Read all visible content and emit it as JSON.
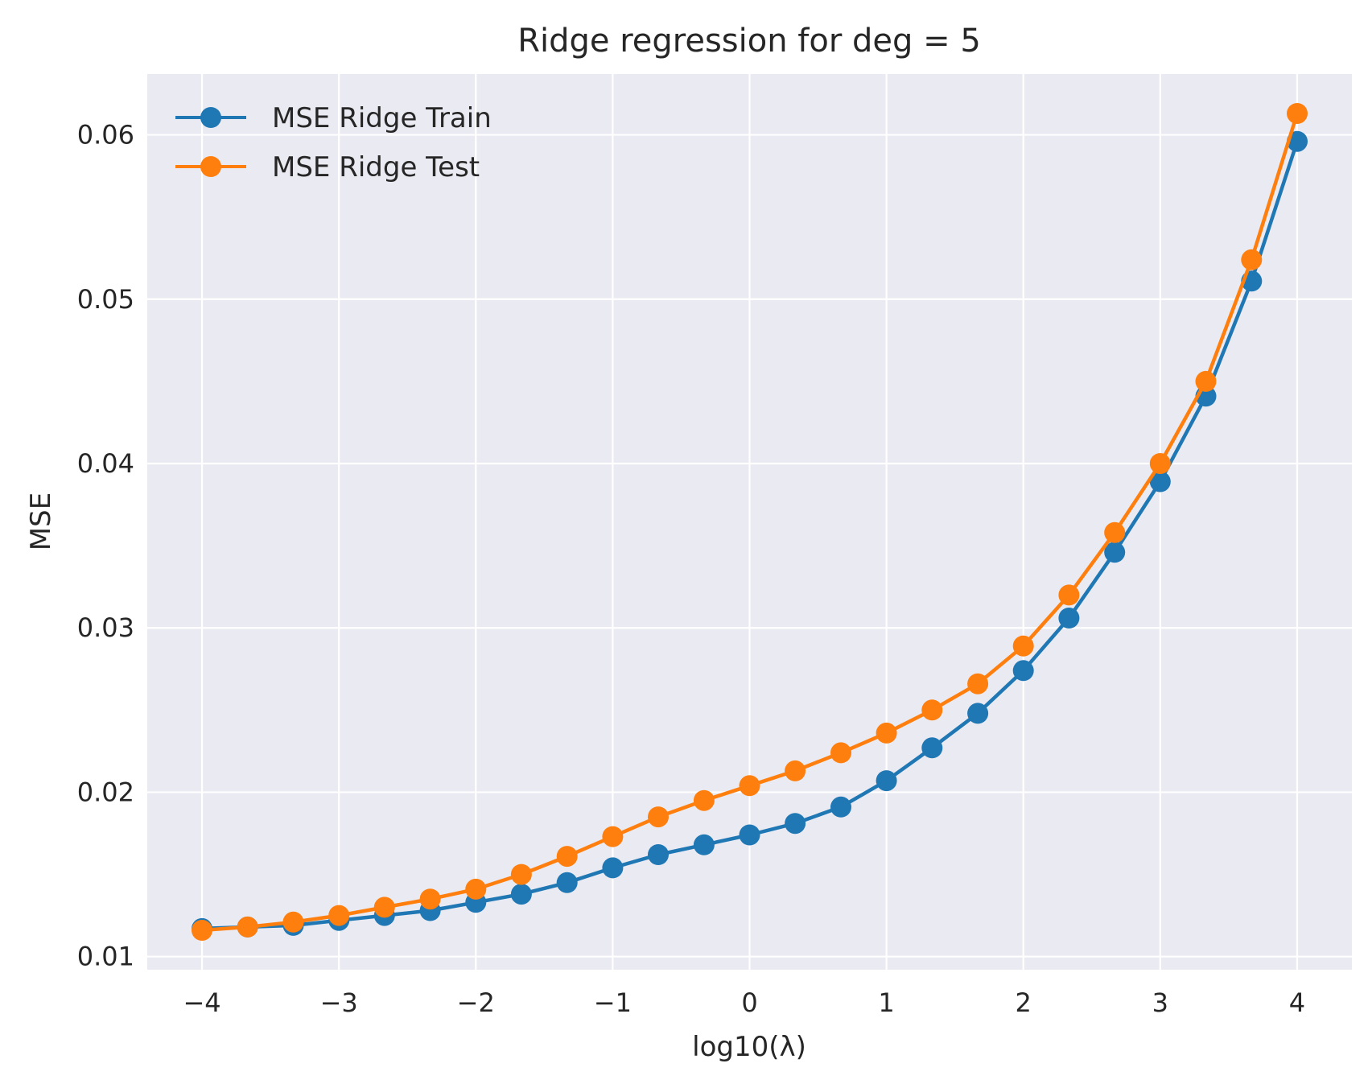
{
  "chart_data": {
    "type": "line",
    "title": "Ridge regression for deg = 5",
    "xlabel": "log10(λ)",
    "ylabel": "MSE",
    "xlim": [
      -4.4,
      4.4
    ],
    "ylim": [
      0.0092,
      0.0637
    ],
    "xticks": [
      -4,
      -3,
      -2,
      -1,
      0,
      1,
      2,
      3,
      4
    ],
    "xtick_labels": [
      "−4",
      "−3",
      "−2",
      "−1",
      "0",
      "1",
      "2",
      "3",
      "4"
    ],
    "yticks": [
      0.01,
      0.02,
      0.03,
      0.04,
      0.05,
      0.06
    ],
    "ytick_labels": [
      "0.01",
      "0.02",
      "0.03",
      "0.04",
      "0.05",
      "0.06"
    ],
    "grid": true,
    "legend_position": "top-left",
    "background": "#eaeaf2",
    "x": [
      -4,
      -3.667,
      -3.333,
      -3,
      -2.667,
      -2.333,
      -2,
      -1.667,
      -1.333,
      -1,
      -0.667,
      -0.333,
      0,
      0.333,
      0.667,
      1,
      1.333,
      1.667,
      2,
      2.333,
      2.667,
      3,
      3.333,
      3.667,
      4
    ],
    "series": [
      {
        "name": "MSE Ridge Train",
        "color": "#1f77b4",
        "values": [
          0.0117,
          0.0118,
          0.0119,
          0.0122,
          0.0125,
          0.0128,
          0.0133,
          0.0138,
          0.0145,
          0.0154,
          0.0162,
          0.0168,
          0.0174,
          0.0181,
          0.0191,
          0.0207,
          0.0227,
          0.0248,
          0.0274,
          0.0306,
          0.0346,
          0.0389,
          0.0441,
          0.0511,
          0.0596
        ]
      },
      {
        "name": "MSE Ridge Test",
        "color": "#ff7f0e",
        "values": [
          0.0116,
          0.0118,
          0.0121,
          0.0125,
          0.013,
          0.0135,
          0.0141,
          0.015,
          0.0161,
          0.0173,
          0.0185,
          0.0195,
          0.0204,
          0.0213,
          0.0224,
          0.0236,
          0.025,
          0.0266,
          0.0289,
          0.032,
          0.0358,
          0.04,
          0.045,
          0.0524,
          0.0613
        ]
      }
    ]
  }
}
